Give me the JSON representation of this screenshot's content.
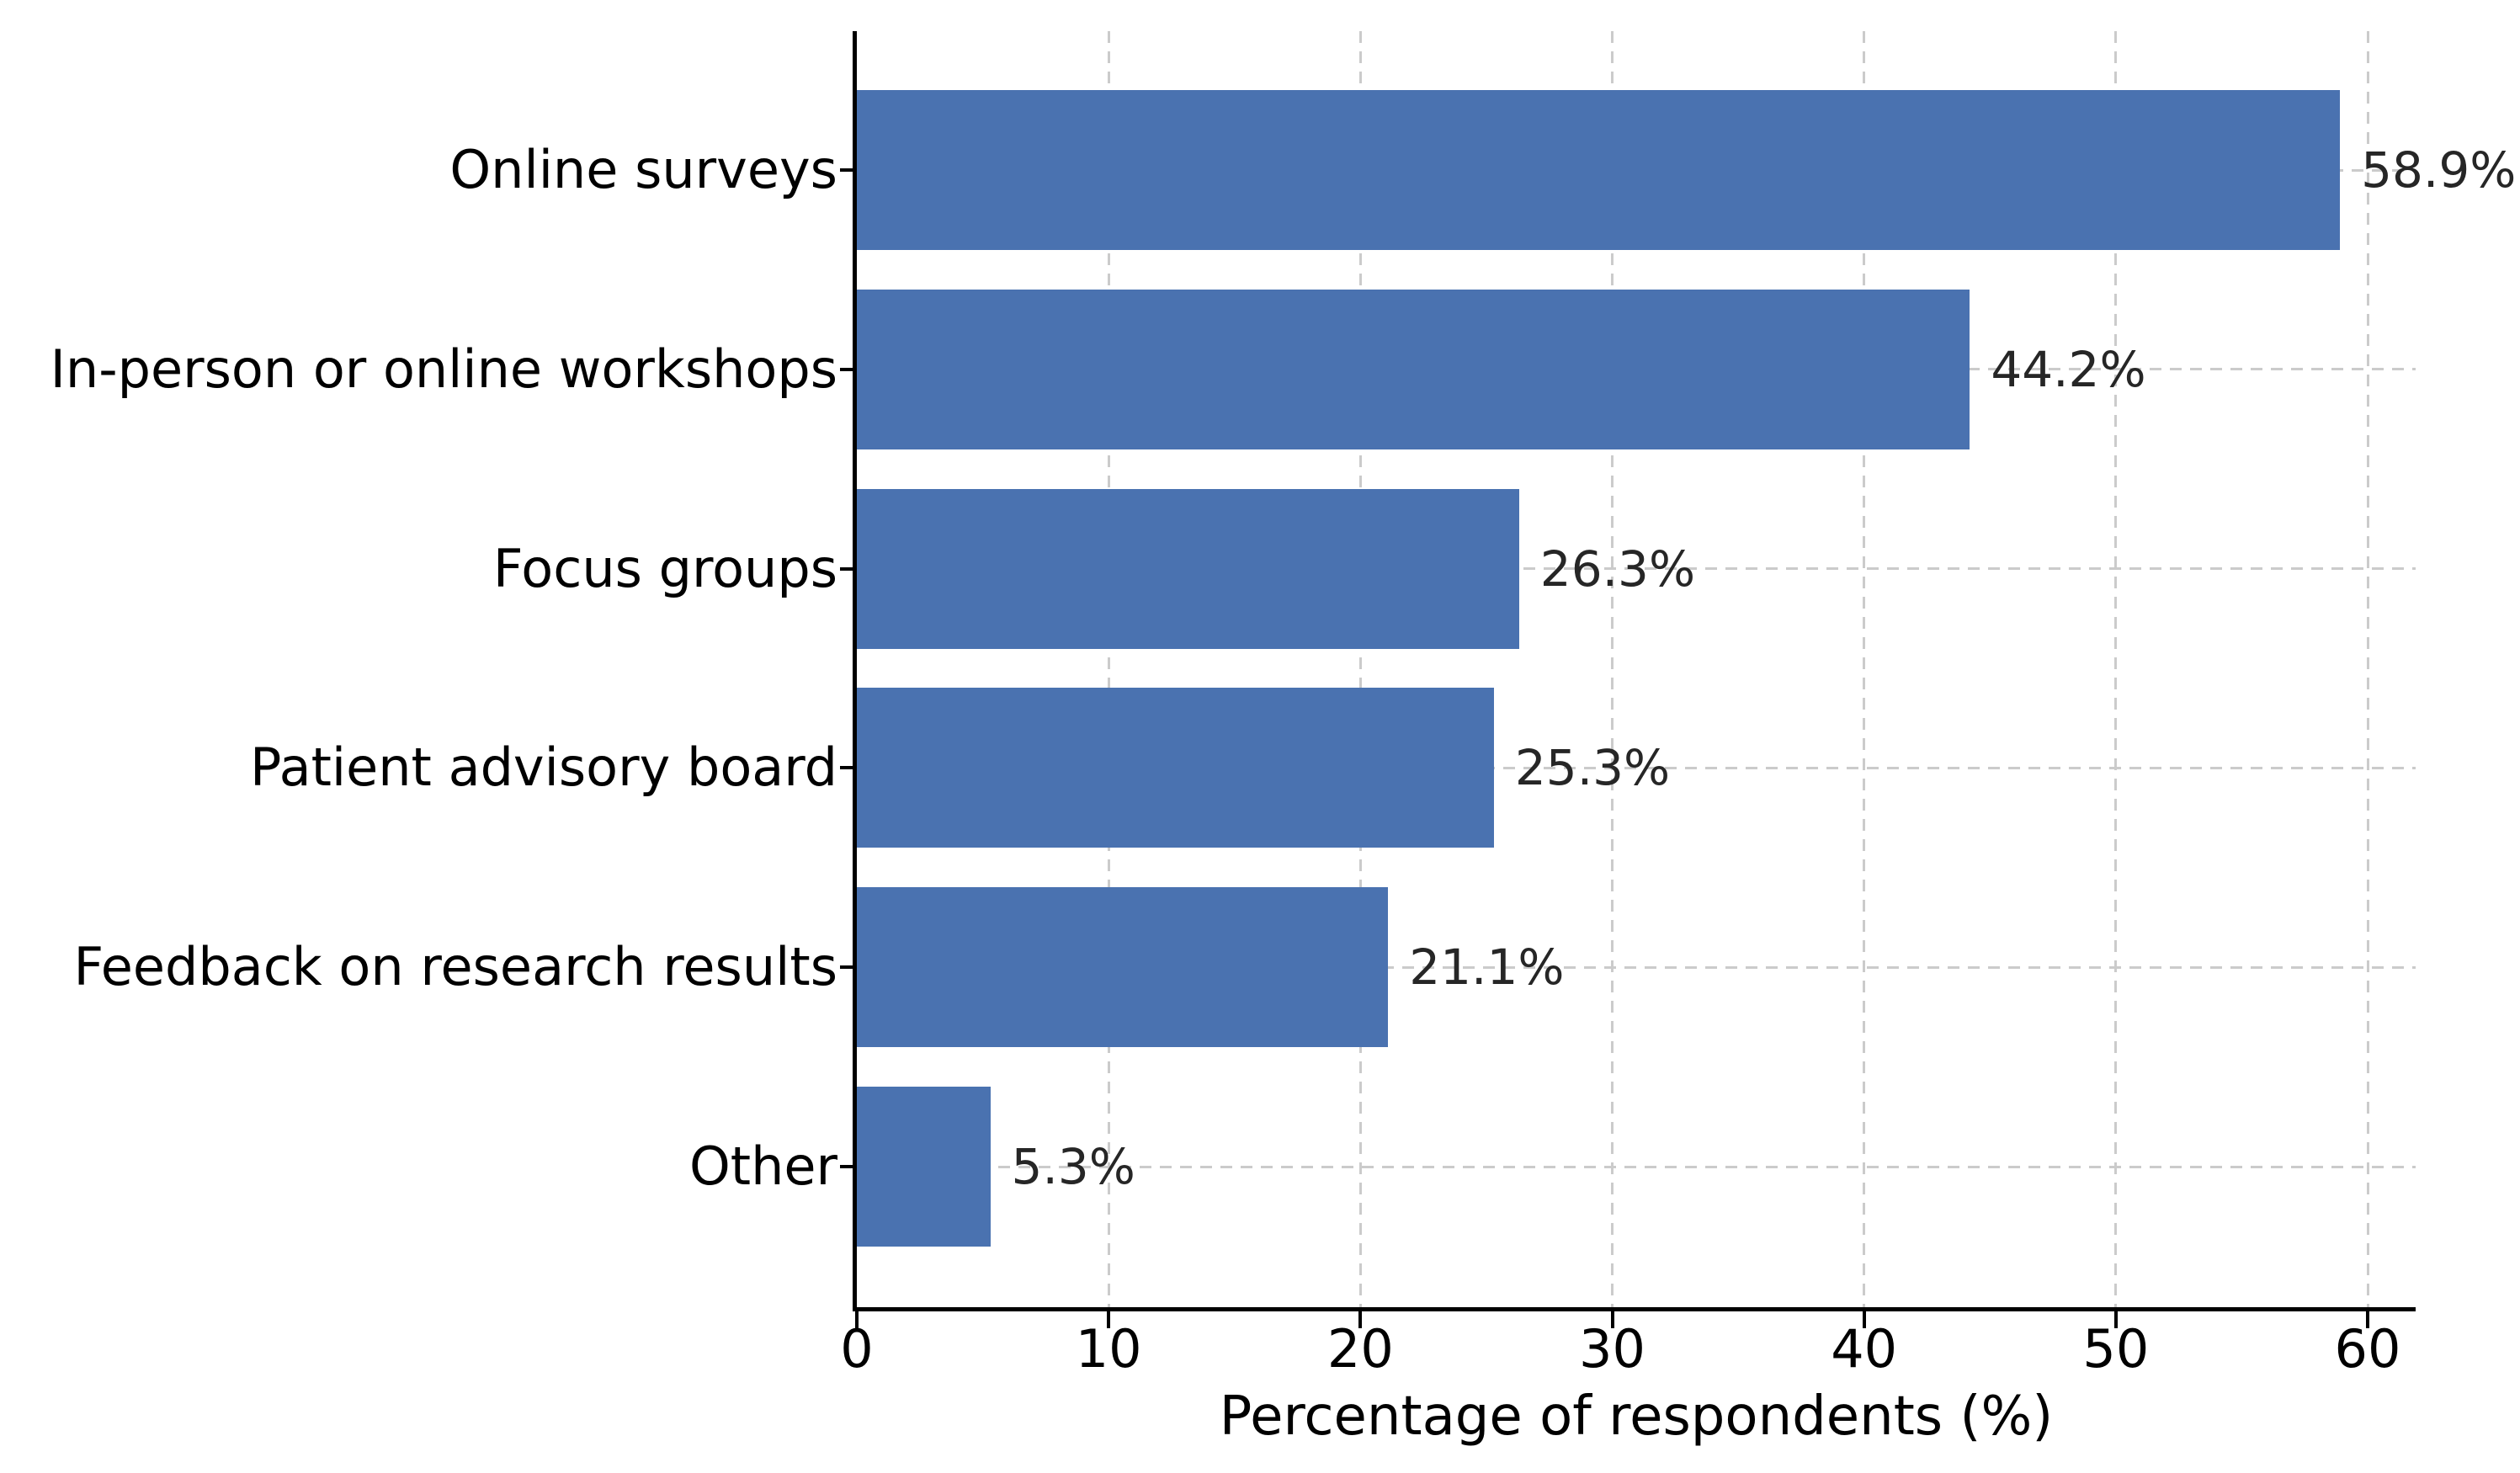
{
  "chart_data": {
    "type": "bar",
    "orientation": "horizontal",
    "title": "",
    "xlabel": "Percentage of respondents (%)",
    "ylabel": "",
    "categories": [
      "Online surveys",
      "In-person or online workshops",
      "Focus groups",
      "Patient advisory board",
      "Feedback on research results",
      "Other"
    ],
    "values": [
      58.9,
      44.2,
      26.3,
      25.3,
      21.1,
      5.3
    ],
    "value_labels": [
      "58.9%",
      "44.2%",
      "26.3%",
      "25.3%",
      "21.1%",
      "5.3%"
    ],
    "xticks": [
      0,
      10,
      20,
      30,
      40,
      50,
      60
    ],
    "xtick_labels": [
      "0",
      "10",
      "20",
      "30",
      "40",
      "50",
      "60"
    ],
    "xlim": [
      0,
      61.9
    ],
    "grid": {
      "style": "dashed",
      "axes": "both",
      "position": "behind-bars"
    },
    "legend": "none",
    "colors": {
      "bar": "#4a72b0",
      "grid": "#cbcbcb",
      "spine": "#000000",
      "tick_text": "#000000",
      "category_text": "#000000",
      "value_text": "#262626",
      "background": "#ffffff"
    }
  }
}
